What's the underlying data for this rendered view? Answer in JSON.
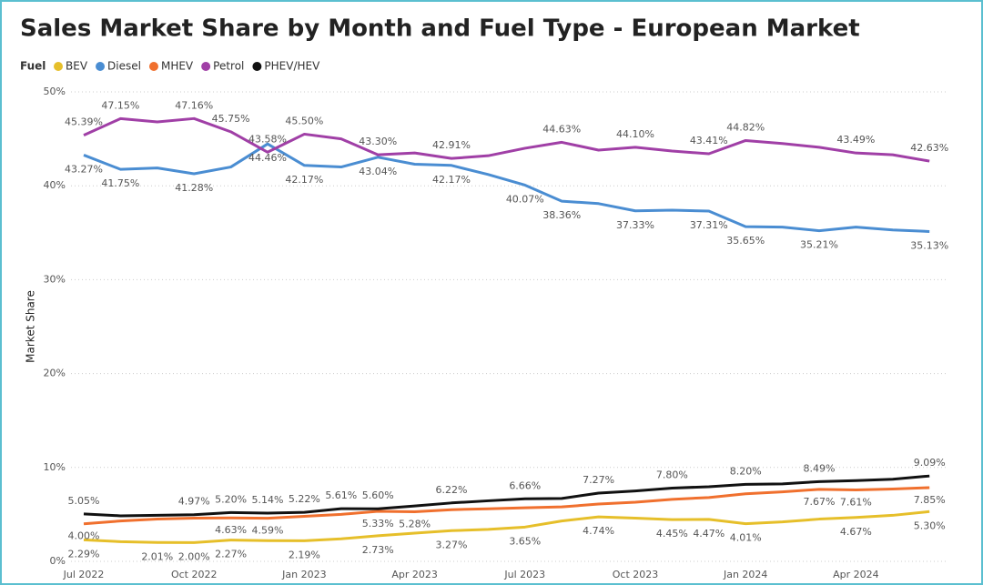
{
  "chart_data": {
    "type": "line",
    "title": "Sales Market Share by Month and Fuel Type - European Market",
    "legend_title": "Fuel",
    "y_label": "Market Share",
    "categories": [
      "Jul 2022",
      null,
      null,
      "Oct 2022",
      null,
      null,
      "Jan 2023",
      null,
      null,
      "Apr 2023",
      null,
      null,
      "Jul 2023",
      null,
      null,
      "Oct 2023",
      null,
      null,
      "Jan 2024",
      null,
      null,
      "Apr 2024",
      null,
      null
    ],
    "ylim": [
      0,
      50
    ],
    "yticks": [
      {
        "value": 0,
        "label": "0%"
      },
      {
        "value": 10,
        "label": "10%"
      },
      {
        "value": 20,
        "label": "20%"
      },
      {
        "value": 30,
        "label": "30%"
      },
      {
        "value": 40,
        "label": "40%"
      },
      {
        "value": 50,
        "label": "50%"
      }
    ],
    "grid": true,
    "series": [
      {
        "name": "BEV",
        "color": "#e6bf2a",
        "values": [
          2.29,
          2.1,
          2.01,
          2.0,
          2.27,
          2.2,
          2.19,
          2.4,
          2.73,
          3.0,
          3.27,
          3.4,
          3.65,
          4.3,
          4.74,
          4.6,
          4.45,
          4.47,
          4.01,
          4.2,
          4.5,
          4.67,
          4.9,
          5.3
        ],
        "value_labels": [
          "2.29%",
          null,
          "2.01%",
          "2.00%",
          "2.27%",
          null,
          "2.19%",
          null,
          "2.73%",
          null,
          "3.27%",
          null,
          "3.65%",
          null,
          "4.74%",
          null,
          "4.45%",
          "4.47%",
          "4.01%",
          null,
          null,
          "4.67%",
          null,
          "5.30%"
        ]
      },
      {
        "name": "Diesel",
        "color": "#4a8dd2",
        "values": [
          43.27,
          41.75,
          41.9,
          41.28,
          42.0,
          44.46,
          42.17,
          42.0,
          43.04,
          42.3,
          42.17,
          41.2,
          40.07,
          38.36,
          38.1,
          37.33,
          37.4,
          37.31,
          35.65,
          35.6,
          35.21,
          35.6,
          35.3,
          35.13
        ],
        "value_labels": [
          "43.27%",
          "41.75%",
          null,
          "41.28%",
          null,
          "44.46%",
          "42.17%",
          null,
          "43.04%",
          null,
          "42.17%",
          null,
          "40.07%",
          "38.36%",
          null,
          "37.33%",
          null,
          "37.31%",
          "35.65%",
          null,
          "35.21%",
          null,
          null,
          "35.13%"
        ]
      },
      {
        "name": "MHEV",
        "color": "#f0702e",
        "values": [
          4.0,
          4.3,
          4.5,
          4.6,
          4.63,
          4.59,
          4.8,
          5.0,
          5.33,
          5.28,
          5.5,
          5.6,
          5.7,
          5.8,
          6.1,
          6.3,
          6.6,
          6.8,
          7.2,
          7.4,
          7.67,
          7.61,
          7.7,
          7.85
        ],
        "value_labels": [
          "4.00%",
          null,
          null,
          null,
          "4.63%",
          "4.59%",
          null,
          null,
          "5.33%",
          "5.28%",
          null,
          null,
          null,
          null,
          null,
          null,
          null,
          null,
          null,
          null,
          "7.67%",
          "7.61%",
          null,
          "7.85%"
        ]
      },
      {
        "name": "Petrol",
        "color": "#a03fa6",
        "values": [
          45.39,
          47.15,
          46.8,
          47.16,
          45.75,
          43.58,
          45.5,
          45.0,
          43.3,
          43.5,
          42.91,
          43.2,
          44.0,
          44.63,
          43.8,
          44.1,
          43.7,
          43.41,
          44.82,
          44.5,
          44.1,
          43.49,
          43.3,
          42.63
        ],
        "value_labels": [
          "45.39%",
          "47.15%",
          null,
          "47.16%",
          "45.75%",
          "43.58%",
          "45.50%",
          null,
          "43.30%",
          null,
          "42.91%",
          null,
          null,
          "44.63%",
          null,
          "44.10%",
          null,
          "43.41%",
          "44.82%",
          null,
          null,
          "43.49%",
          null,
          "42.63%"
        ]
      },
      {
        "name": "PHEV/HEV",
        "color": "#111111",
        "values": [
          5.05,
          4.85,
          4.9,
          4.97,
          5.2,
          5.14,
          5.22,
          5.61,
          5.6,
          5.9,
          6.22,
          6.45,
          6.66,
          6.7,
          7.27,
          7.5,
          7.8,
          7.95,
          8.2,
          8.25,
          8.49,
          8.6,
          8.75,
          9.09
        ],
        "value_labels": [
          "5.05%",
          null,
          null,
          "4.97%",
          "5.20%",
          "5.14%",
          "5.22%",
          "5.61%",
          "5.60%",
          null,
          "6.22%",
          null,
          "6.66%",
          null,
          "7.27%",
          null,
          "7.80%",
          null,
          "8.20%",
          null,
          "8.49%",
          null,
          null,
          "9.09%"
        ]
      }
    ]
  }
}
